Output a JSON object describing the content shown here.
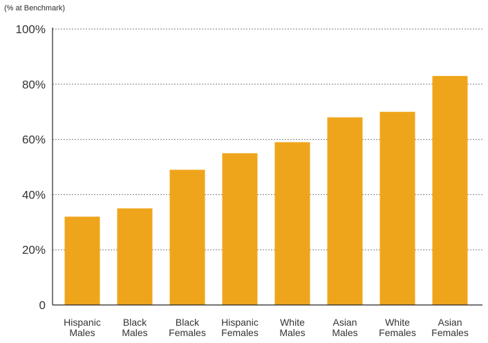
{
  "chart_data": {
    "type": "bar",
    "unit_note": "(% at Benchmark)",
    "title": "",
    "xlabel": "",
    "ylabel": "",
    "ylim": [
      0,
      100
    ],
    "y_ticks": [
      {
        "value": 0,
        "label": "0"
      },
      {
        "value": 20,
        "label": "20%"
      },
      {
        "value": 40,
        "label": "40%"
      },
      {
        "value": 60,
        "label": "60%"
      },
      {
        "value": 80,
        "label": "80%"
      },
      {
        "value": 100,
        "label": "100%"
      }
    ],
    "categories": [
      [
        "Hispanic",
        "Males"
      ],
      [
        "Black",
        "Males"
      ],
      [
        "Black",
        "Females"
      ],
      [
        "Hispanic",
        "Females"
      ],
      [
        "White",
        "Males"
      ],
      [
        "Asian",
        "Males"
      ],
      [
        "White",
        "Females"
      ],
      [
        "Asian",
        "Females"
      ]
    ],
    "values": [
      32,
      35,
      49,
      55,
      59,
      68,
      70,
      83
    ],
    "grid": "dashed horizontal",
    "bar_color": "#EFA51B",
    "axis_color": "#222222",
    "grid_color": "#7a7a7a"
  }
}
